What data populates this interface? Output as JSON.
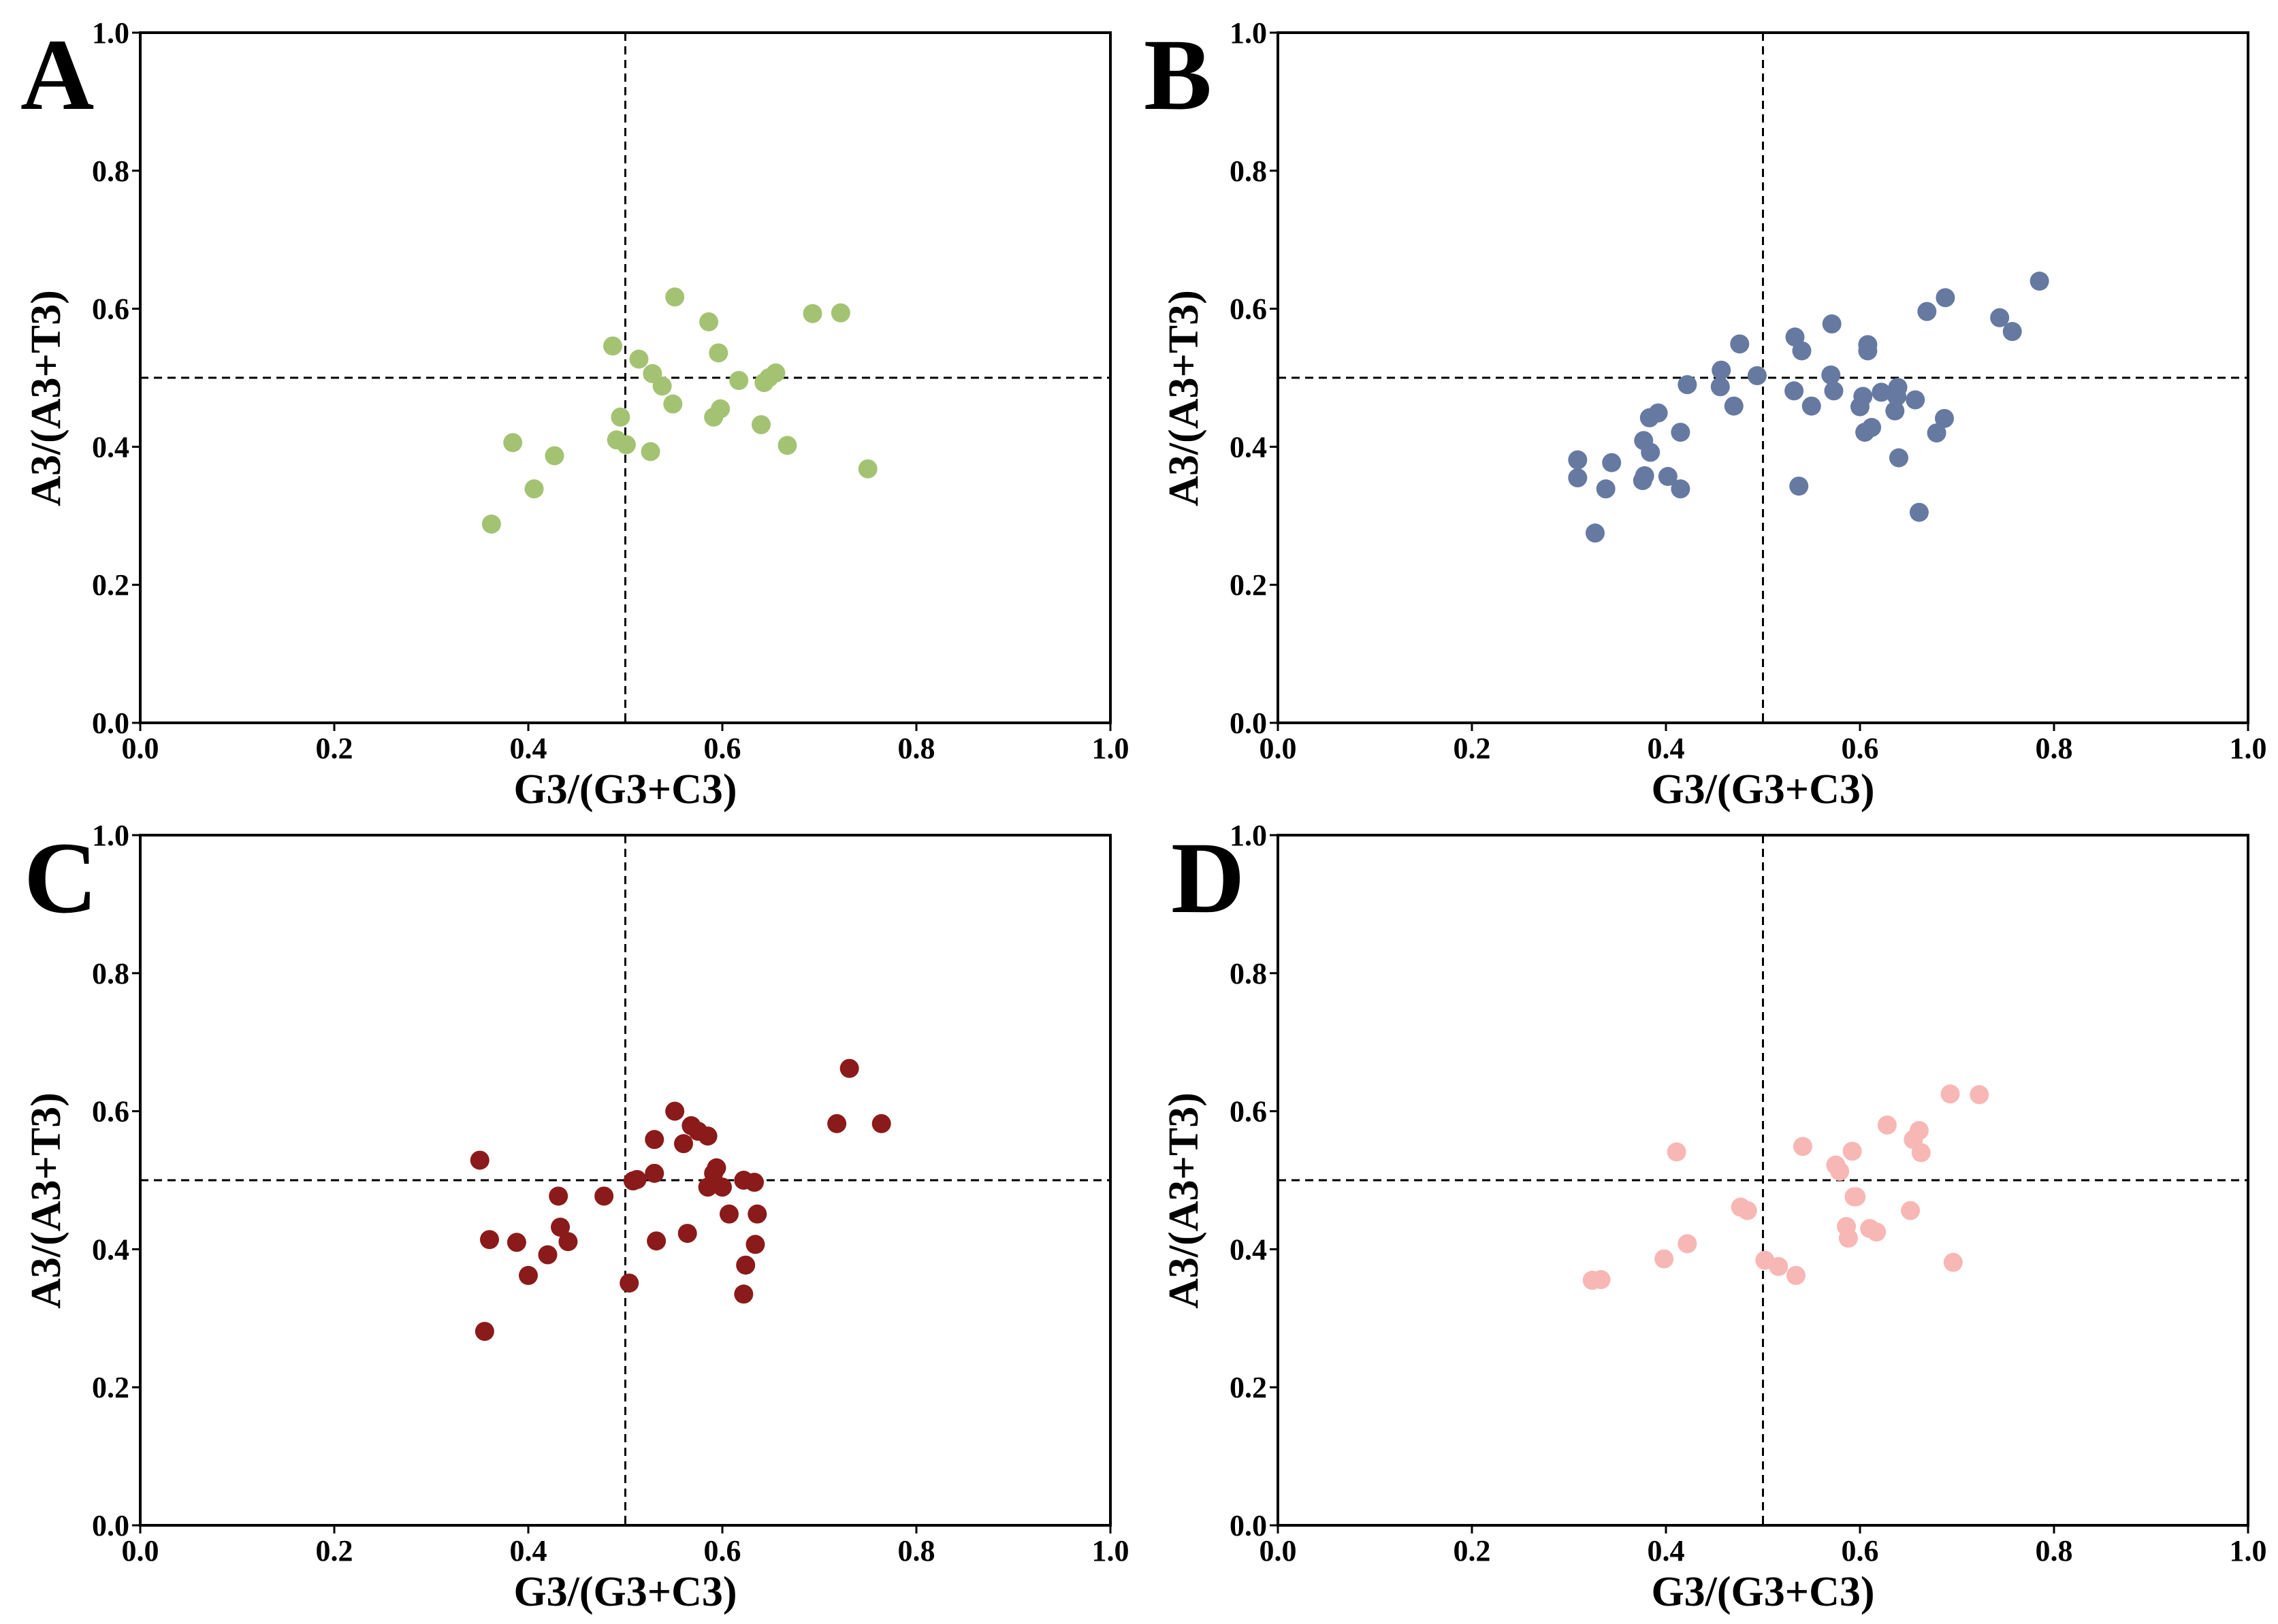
{
  "chart_data": [
    {
      "type": "scatter",
      "panel": "A",
      "color": "#a3c373",
      "xlabel": "G3/(G3+C3)",
      "ylabel": "A3/(A3+T3)",
      "xlim": [
        0.0,
        1.0
      ],
      "ylim": [
        0.0,
        1.0
      ],
      "xticks": [
        "0.0",
        "0.2",
        "0.4",
        "0.6",
        "0.8",
        "1.0"
      ],
      "yticks": [
        "0.0",
        "0.2",
        "0.4",
        "0.6",
        "0.8",
        "1.0"
      ],
      "reference_lines": {
        "x": 0.5,
        "y": 0.5
      },
      "points": [
        [
          0.362,
          0.288
        ],
        [
          0.384,
          0.406
        ],
        [
          0.406,
          0.339
        ],
        [
          0.427,
          0.387
        ],
        [
          0.487,
          0.546
        ],
        [
          0.491,
          0.41
        ],
        [
          0.495,
          0.443
        ],
        [
          0.501,
          0.403
        ],
        [
          0.514,
          0.527
        ],
        [
          0.526,
          0.393
        ],
        [
          0.528,
          0.506
        ],
        [
          0.538,
          0.488
        ],
        [
          0.549,
          0.462
        ],
        [
          0.551,
          0.617
        ],
        [
          0.586,
          0.581
        ],
        [
          0.591,
          0.443
        ],
        [
          0.596,
          0.536
        ],
        [
          0.598,
          0.455
        ],
        [
          0.617,
          0.496
        ],
        [
          0.64,
          0.432
        ],
        [
          0.643,
          0.493
        ],
        [
          0.648,
          0.5
        ],
        [
          0.655,
          0.507
        ],
        [
          0.667,
          0.402
        ],
        [
          0.693,
          0.593
        ],
        [
          0.722,
          0.594
        ],
        [
          0.75,
          0.368
        ]
      ]
    },
    {
      "type": "scatter",
      "panel": "B",
      "color": "#6679a1",
      "xlabel": "G3/(G3+C3)",
      "ylabel": "A3/(A3+T3)",
      "xlim": [
        0.0,
        1.0
      ],
      "ylim": [
        0.0,
        1.0
      ],
      "xticks": [
        "0.0",
        "0.2",
        "0.4",
        "0.6",
        "0.8",
        "1.0"
      ],
      "yticks": [
        "0.0",
        "0.2",
        "0.4",
        "0.6",
        "0.8",
        "1.0"
      ],
      "reference_lines": {
        "x": 0.5,
        "y": 0.5
      },
      "points": [
        [
          0.309,
          0.381
        ],
        [
          0.309,
          0.355
        ],
        [
          0.327,
          0.275
        ],
        [
          0.338,
          0.339
        ],
        [
          0.344,
          0.377
        ],
        [
          0.376,
          0.351
        ],
        [
          0.377,
          0.409
        ],
        [
          0.378,
          0.358
        ],
        [
          0.383,
          0.442
        ],
        [
          0.384,
          0.392
        ],
        [
          0.392,
          0.449
        ],
        [
          0.402,
          0.357
        ],
        [
          0.415,
          0.339
        ],
        [
          0.415,
          0.421
        ],
        [
          0.422,
          0.49
        ],
        [
          0.456,
          0.487
        ],
        [
          0.457,
          0.511
        ],
        [
          0.47,
          0.459
        ],
        [
          0.476,
          0.549
        ],
        [
          0.494,
          0.503
        ],
        [
          0.532,
          0.481
        ],
        [
          0.533,
          0.559
        ],
        [
          0.537,
          0.343
        ],
        [
          0.54,
          0.539
        ],
        [
          0.55,
          0.459
        ],
        [
          0.57,
          0.504
        ],
        [
          0.571,
          0.578
        ],
        [
          0.573,
          0.481
        ],
        [
          0.6,
          0.458
        ],
        [
          0.603,
          0.473
        ],
        [
          0.605,
          0.421
        ],
        [
          0.608,
          0.539
        ],
        [
          0.608,
          0.548
        ],
        [
          0.612,
          0.428
        ],
        [
          0.622,
          0.479
        ],
        [
          0.636,
          0.452
        ],
        [
          0.638,
          0.473
        ],
        [
          0.639,
          0.486
        ],
        [
          0.64,
          0.384
        ],
        [
          0.657,
          0.468
        ],
        [
          0.661,
          0.305
        ],
        [
          0.669,
          0.596
        ],
        [
          0.679,
          0.42
        ],
        [
          0.687,
          0.441
        ],
        [
          0.688,
          0.616
        ],
        [
          0.744,
          0.587
        ],
        [
          0.757,
          0.567
        ],
        [
          0.785,
          0.64
        ]
      ]
    },
    {
      "type": "scatter",
      "panel": "C",
      "color": "#8b1a1a",
      "xlabel": "G3/(G3+C3)",
      "ylabel": "A3/(A3+T3)",
      "xlim": [
        0.0,
        1.0
      ],
      "ylim": [
        0.0,
        1.0
      ],
      "xticks": [
        "0.0",
        "0.2",
        "0.4",
        "0.6",
        "0.8",
        "1.0"
      ],
      "yticks": [
        "0.0",
        "0.2",
        "0.4",
        "0.6",
        "0.8",
        "1.0"
      ],
      "reference_lines": {
        "x": 0.5,
        "y": 0.5
      },
      "points": [
        [
          0.35,
          0.529
        ],
        [
          0.355,
          0.281
        ],
        [
          0.36,
          0.414
        ],
        [
          0.388,
          0.41
        ],
        [
          0.4,
          0.362
        ],
        [
          0.42,
          0.392
        ],
        [
          0.431,
          0.477
        ],
        [
          0.433,
          0.432
        ],
        [
          0.441,
          0.411
        ],
        [
          0.478,
          0.477
        ],
        [
          0.504,
          0.351
        ],
        [
          0.508,
          0.499
        ],
        [
          0.512,
          0.501
        ],
        [
          0.53,
          0.559
        ],
        [
          0.53,
          0.51
        ],
        [
          0.532,
          0.412
        ],
        [
          0.551,
          0.6
        ],
        [
          0.56,
          0.553
        ],
        [
          0.564,
          0.423
        ],
        [
          0.568,
          0.579
        ],
        [
          0.575,
          0.571
        ],
        [
          0.585,
          0.564
        ],
        [
          0.585,
          0.49
        ],
        [
          0.591,
          0.51
        ],
        [
          0.594,
          0.518
        ],
        [
          0.6,
          0.49
        ],
        [
          0.607,
          0.451
        ],
        [
          0.622,
          0.5
        ],
        [
          0.622,
          0.335
        ],
        [
          0.624,
          0.377
        ],
        [
          0.633,
          0.497
        ],
        [
          0.634,
          0.407
        ],
        [
          0.636,
          0.451
        ],
        [
          0.718,
          0.582
        ],
        [
          0.731,
          0.662
        ],
        [
          0.764,
          0.582
        ]
      ]
    },
    {
      "type": "scatter",
      "panel": "D",
      "color": "#f7b7b5",
      "xlabel": "G3/(G3+C3)",
      "ylabel": "A3/(A3+T3)",
      "xlim": [
        0.0,
        1.0
      ],
      "ylim": [
        0.0,
        1.0
      ],
      "xticks": [
        "0.0",
        "0.2",
        "0.4",
        "0.6",
        "0.8",
        "1.0"
      ],
      "yticks": [
        "0.0",
        "0.2",
        "0.4",
        "0.6",
        "0.8",
        "1.0"
      ],
      "reference_lines": {
        "x": 0.5,
        "y": 0.5
      },
      "points": [
        [
          0.324,
          0.355
        ],
        [
          0.333,
          0.356
        ],
        [
          0.398,
          0.386
        ],
        [
          0.411,
          0.541
        ],
        [
          0.422,
          0.408
        ],
        [
          0.477,
          0.461
        ],
        [
          0.484,
          0.456
        ],
        [
          0.502,
          0.384
        ],
        [
          0.516,
          0.375
        ],
        [
          0.534,
          0.362
        ],
        [
          0.541,
          0.549
        ],
        [
          0.575,
          0.522
        ],
        [
          0.579,
          0.513
        ],
        [
          0.586,
          0.433
        ],
        [
          0.588,
          0.416
        ],
        [
          0.592,
          0.542
        ],
        [
          0.594,
          0.476
        ],
        [
          0.596,
          0.476
        ],
        [
          0.61,
          0.43
        ],
        [
          0.617,
          0.425
        ],
        [
          0.628,
          0.58
        ],
        [
          0.652,
          0.456
        ],
        [
          0.655,
          0.559
        ],
        [
          0.661,
          0.572
        ],
        [
          0.663,
          0.54
        ],
        [
          0.693,
          0.625
        ],
        [
          0.696,
          0.381
        ],
        [
          0.723,
          0.624
        ]
      ]
    }
  ]
}
